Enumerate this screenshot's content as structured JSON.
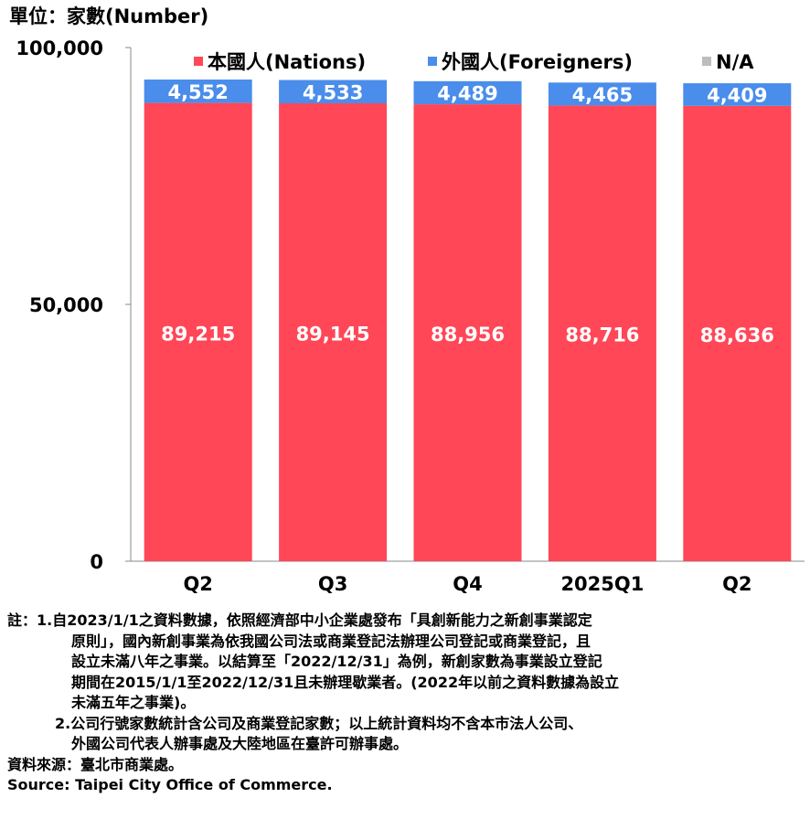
{
  "unit_label": "單位：家數(Number)",
  "colors": {
    "nations": "#FF4757",
    "foreigners": "#4A8DEB",
    "na": "#BDBDBD"
  },
  "chart_data": {
    "type": "bar",
    "stacked": true,
    "categories": [
      "Q2",
      "Q3",
      "Q4",
      "2025Q1",
      "Q2"
    ],
    "series": [
      {
        "name": "本國人(Nations)",
        "color": "#FF4757",
        "values": [
          89215,
          89145,
          88956,
          88716,
          88636
        ],
        "labels": [
          "89,215",
          "89,145",
          "88,956",
          "88,716",
          "88,636"
        ]
      },
      {
        "name": "外國人(Foreigners)",
        "color": "#4A8DEB",
        "values": [
          4552,
          4533,
          4489,
          4465,
          4409
        ],
        "labels": [
          "4,552",
          "4,533",
          "4,489",
          "4,465",
          "4,409"
        ]
      },
      {
        "name": "N/A",
        "color": "#BDBDBD",
        "values": [
          0,
          0,
          0,
          0,
          0
        ],
        "labels": [
          "",
          "",
          "",
          "",
          ""
        ]
      }
    ],
    "ylim": [
      0,
      100000
    ],
    "yticks": [
      0,
      50000,
      100000
    ],
    "ytick_labels": [
      "0",
      "50,000",
      "100,000"
    ],
    "legend_position": "top",
    "grid": false
  },
  "notes": {
    "line1": "註：1.自2023/1/1之資料數據，依照經濟部中小企業處發布「具創新能力之新創事業認定",
    "line2": "原則」，國內新創事業為依我國公司法或商業登記法辦理公司登記或商業登記，且",
    "line3": "設立未滿八年之事業。以結算至「2022/12/31」為例，新創家數為事業設立登記",
    "line4": "期間在2015/1/1至2022/12/31且未辦理歇業者。(2022年以前之資料數據為設立",
    "line5": "未滿五年之事業)。",
    "line6": "2.公司行號家數統計含公司及商業登記家數；以上統計資料均不含本市法人公司、",
    "line7": "外國公司代表人辦事處及大陸地區在臺許可辦事處。"
  },
  "source": {
    "zh": "資料來源：臺北市商業處。",
    "en": "Source: Taipei City Office of Commerce."
  }
}
